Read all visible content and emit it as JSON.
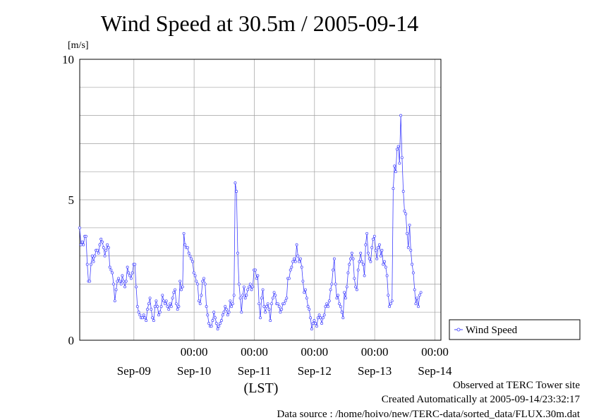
{
  "title": "Wind Speed at 30.5m / 2005-09-14",
  "unit_label": "[m/s]",
  "x_caption": "(LST)",
  "legend": {
    "label": "Wind Speed"
  },
  "footer": {
    "line1": "Observed at TERC Tower site",
    "line2": "Created Automatically at 2005-09-14/23:32:17",
    "line3": "Data source : /home/hoivo/new/TERC-data/sorted_data/FLUX.30m.dat"
  },
  "colors": {
    "series": "#4040ff",
    "grid": "#a0a0a0",
    "axes": "#000000"
  },
  "chart_data": {
    "type": "line",
    "title": "Wind Speed at 30.5m / 2005-09-14",
    "ylabel": "[m/s]",
    "xlabel": "(LST)",
    "ylim": [
      0,
      10
    ],
    "yticks": [
      "0",
      "5",
      "10"
    ],
    "xlim_days": [
      8.1,
      14.1
    ],
    "xticks_midnight": [
      "00:00",
      "00:00",
      "00:00",
      "00:00",
      "00:00"
    ],
    "xticks_days": [
      "Sep-09",
      "Sep-10",
      "Sep-11",
      "Sep-12",
      "Sep-13",
      "Sep-14"
    ],
    "grid": true,
    "legend_position": "right",
    "series": [
      {
        "name": "Wind Speed",
        "marker": "circle",
        "x_start": "2005-09-08 02:24",
        "interval_hours": 0.5,
        "values": [
          4.0,
          3.4,
          3.5,
          3.4,
          3.7,
          3.7,
          2.7,
          2.1,
          2.1,
          2.7,
          3.0,
          2.8,
          3.0,
          3.2,
          3.2,
          3.1,
          3.4,
          3.6,
          3.5,
          3.3,
          3.0,
          3.2,
          3.4,
          3.3,
          2.6,
          2.5,
          2.4,
          2.0,
          1.4,
          1.8,
          2.1,
          2.2,
          2.1,
          2.0,
          2.3,
          2.1,
          1.9,
          2.1,
          2.6,
          2.4,
          2.3,
          2.2,
          2.4,
          2.7,
          2.7,
          1.9,
          1.2,
          1.0,
          0.9,
          0.8,
          0.8,
          0.9,
          0.8,
          0.7,
          1.1,
          1.3,
          1.5,
          1.1,
          0.8,
          0.7,
          1.2,
          1.4,
          1.2,
          0.9,
          1.0,
          1.2,
          1.6,
          1.4,
          1.3,
          1.4,
          1.2,
          1.1,
          1.3,
          1.2,
          1.5,
          1.7,
          1.8,
          1.3,
          1.1,
          1.2,
          2.1,
          1.8,
          1.9,
          3.8,
          3.4,
          3.3,
          3.3,
          3.1,
          3.0,
          2.9,
          2.8,
          2.4,
          2.3,
          2.1,
          2.0,
          1.4,
          1.3,
          1.6,
          2.1,
          2.2,
          2.0,
          1.2,
          0.9,
          0.6,
          0.5,
          0.5,
          0.7,
          1.0,
          0.8,
          0.6,
          0.4,
          0.5,
          0.6,
          0.7,
          0.9,
          1.0,
          1.2,
          1.1,
          0.9,
          1.0,
          1.4,
          1.2,
          1.3,
          1.6,
          5.6,
          5.3,
          3.1,
          2.0,
          1.5,
          1.0,
          1.6,
          1.9,
          1.5,
          1.6,
          1.8,
          1.9,
          2.0,
          1.8,
          1.9,
          2.5,
          2.5,
          2.2,
          2.3,
          1.3,
          0.8,
          1.5,
          1.8,
          1.2,
          1.0,
          1.2,
          1.3,
          1.1,
          0.7,
          1.3,
          1.5,
          1.7,
          1.6,
          1.3,
          1.3,
          1.2,
          1.0,
          1.1,
          1.3,
          1.3,
          1.4,
          1.5,
          2.2,
          2.2,
          2.5,
          2.6,
          2.8,
          2.9,
          2.8,
          3.4,
          3.0,
          2.8,
          2.9,
          2.6,
          2.1,
          1.7,
          1.8,
          1.5,
          1.2,
          1.1,
          0.8,
          0.4,
          0.6,
          0.7,
          0.6,
          0.5,
          0.8,
          0.9,
          0.8,
          0.6,
          0.8,
          0.9,
          1.2,
          1.3,
          1.2,
          1.4,
          1.8,
          2.0,
          2.5,
          2.9,
          2.0,
          1.5,
          1.6,
          1.3,
          1.2,
          1.0,
          0.8,
          1.7,
          1.5,
          1.9,
          2.4,
          2.7,
          2.9,
          3.1,
          2.9,
          2.2,
          1.9,
          1.8,
          2.5,
          2.8,
          3.1,
          2.8,
          2.7,
          2.3,
          3.4,
          3.8,
          3.1,
          2.9,
          2.8,
          3.3,
          3.6,
          3.7,
          3.2,
          2.9,
          3.3,
          3.4,
          3.0,
          3.2,
          2.7,
          2.8,
          2.6,
          2.3,
          1.6,
          1.2,
          1.3,
          1.4,
          5.4,
          6.2,
          6.0,
          6.8,
          6.9,
          6.3,
          8.0,
          6.5,
          5.3,
          4.6,
          4.5,
          3.8,
          3.3,
          4.1,
          3.2,
          2.7,
          2.4,
          1.8,
          1.3,
          1.5,
          1.2,
          1.6,
          1.7
        ]
      }
    ]
  }
}
